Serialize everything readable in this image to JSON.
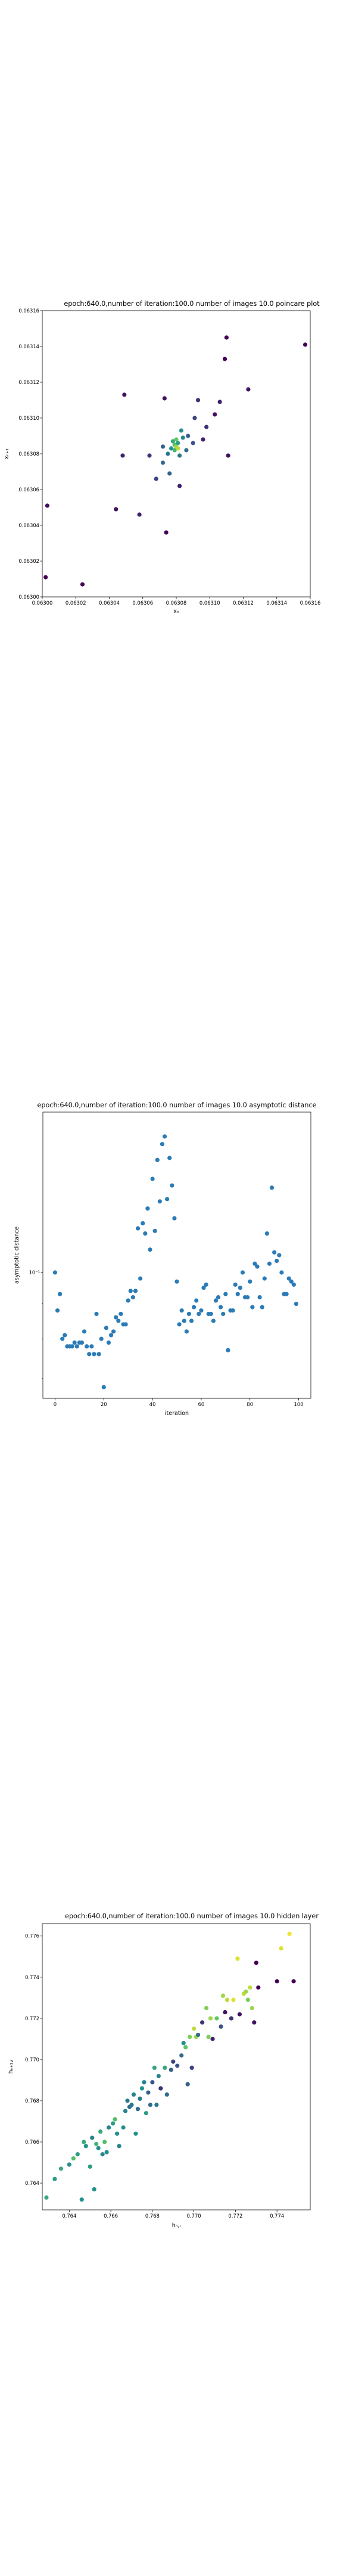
{
  "colors": {
    "background": "#ffffff",
    "axes": "#000000",
    "colormap": "viridis",
    "asym_point": "#2a7bb6"
  },
  "chart_data": [
    {
      "type": "scatter",
      "title": "epoch:640.0,number of iteration:100.0 number of images 10.0 poincare plot",
      "xlabel": "xₙ",
      "ylabel": "xₙ₊₁",
      "xlim": [
        0.063,
        0.06316
      ],
      "ylim": [
        0.063,
        0.06316
      ],
      "xticks": [
        "0.06300",
        "0.06302",
        "0.06304",
        "0.06306",
        "0.06308",
        "0.06310",
        "0.06312",
        "0.06314",
        "0.06316"
      ],
      "yticks": [
        "0.06300",
        "0.06302",
        "0.06304",
        "0.06306",
        "0.06308",
        "0.06310",
        "0.06312",
        "0.06314",
        "0.06316"
      ],
      "points": [
        {
          "x": 0.063002,
          "y": 0.063011,
          "c": 0.0
        },
        {
          "x": 0.063003,
          "y": 0.063051,
          "c": 0.05
        },
        {
          "x": 0.063024,
          "y": 0.063007,
          "c": 0.0
        },
        {
          "x": 0.063044,
          "y": 0.063049,
          "c": 0.05
        },
        {
          "x": 0.063048,
          "y": 0.063079,
          "c": 0.1
        },
        {
          "x": 0.063049,
          "y": 0.063113,
          "c": 0.05
        },
        {
          "x": 0.063058,
          "y": 0.063046,
          "c": 0.1
        },
        {
          "x": 0.063064,
          "y": 0.063079,
          "c": 0.15
        },
        {
          "x": 0.063068,
          "y": 0.063066,
          "c": 0.2
        },
        {
          "x": 0.063072,
          "y": 0.063084,
          "c": 0.3
        },
        {
          "x": 0.063072,
          "y": 0.063075,
          "c": 0.35
        },
        {
          "x": 0.063073,
          "y": 0.063111,
          "c": 0.05
        },
        {
          "x": 0.063074,
          "y": 0.063036,
          "c": 0.0
        },
        {
          "x": 0.063075,
          "y": 0.06308,
          "c": 0.4
        },
        {
          "x": 0.063076,
          "y": 0.063069,
          "c": 0.3
        },
        {
          "x": 0.063077,
          "y": 0.063083,
          "c": 0.5
        },
        {
          "x": 0.063078,
          "y": 0.063087,
          "c": 0.6
        },
        {
          "x": 0.063079,
          "y": 0.063082,
          "c": 0.65
        },
        {
          "x": 0.063079,
          "y": 0.063085,
          "c": 0.7
        },
        {
          "x": 0.06308,
          "y": 0.063084,
          "c": 0.85
        },
        {
          "x": 0.06308,
          "y": 0.063088,
          "c": 0.75
        },
        {
          "x": 0.063081,
          "y": 0.063083,
          "c": 0.9
        },
        {
          "x": 0.063081,
          "y": 0.063086,
          "c": 0.55
        },
        {
          "x": 0.063082,
          "y": 0.063062,
          "c": 0.1
        },
        {
          "x": 0.063082,
          "y": 0.063079,
          "c": 0.4
        },
        {
          "x": 0.063083,
          "y": 0.063093,
          "c": 0.5
        },
        {
          "x": 0.063084,
          "y": 0.063089,
          "c": 0.45
        },
        {
          "x": 0.063086,
          "y": 0.063082,
          "c": 0.35
        },
        {
          "x": 0.063087,
          "y": 0.06309,
          "c": 0.3
        },
        {
          "x": 0.06309,
          "y": 0.063086,
          "c": 0.25
        },
        {
          "x": 0.063091,
          "y": 0.0631,
          "c": 0.2
        },
        {
          "x": 0.063093,
          "y": 0.06311,
          "c": 0.15
        },
        {
          "x": 0.063096,
          "y": 0.063088,
          "c": 0.1
        },
        {
          "x": 0.063098,
          "y": 0.063095,
          "c": 0.15
        },
        {
          "x": 0.063103,
          "y": 0.063102,
          "c": 0.05
        },
        {
          "x": 0.063106,
          "y": 0.063109,
          "c": 0.1
        },
        {
          "x": 0.063109,
          "y": 0.063133,
          "c": 0.0
        },
        {
          "x": 0.06311,
          "y": 0.063145,
          "c": 0.0
        },
        {
          "x": 0.063111,
          "y": 0.063079,
          "c": 0.05
        },
        {
          "x": 0.063123,
          "y": 0.063116,
          "c": 0.05
        },
        {
          "x": 0.063157,
          "y": 0.063141,
          "c": 0.0
        }
      ]
    },
    {
      "type": "scatter",
      "title": "epoch:640.0,number of iteration:100.0  number of images 10.0 asymptotic distance",
      "xlabel": "iteration",
      "ylabel": "asymptotic distance",
      "xlim": [
        -5,
        105
      ],
      "xticks": [
        0,
        20,
        40,
        60,
        80,
        100
      ],
      "yscale": "log",
      "ylim": [
        0.0655,
        0.1715
      ],
      "yticks": [
        {
          "value": 0.1,
          "label": "10⁻¹"
        }
      ],
      "x": [
        0,
        1,
        2,
        3,
        4,
        5,
        6,
        7,
        8,
        9,
        10,
        11,
        12,
        13,
        14,
        15,
        16,
        17,
        18,
        19,
        20,
        21,
        22,
        23,
        24,
        25,
        26,
        27,
        28,
        29,
        30,
        31,
        32,
        33,
        34,
        35,
        36,
        37,
        38,
        39,
        40,
        41,
        42,
        43,
        44,
        45,
        46,
        47,
        48,
        49,
        50,
        51,
        52,
        53,
        54,
        55,
        56,
        57,
        58,
        59,
        60,
        61,
        62,
        63,
        64,
        65,
        66,
        67,
        68,
        69,
        70,
        71,
        72,
        73,
        74,
        75,
        76,
        77,
        78,
        79,
        80,
        81,
        82,
        83,
        84,
        85,
        86,
        87,
        88,
        89,
        90,
        91,
        92,
        93,
        94,
        95,
        96,
        97,
        98,
        99
      ],
      "y": [
        0.1,
        0.088,
        0.093,
        0.08,
        0.081,
        0.078,
        0.078,
        0.078,
        0.079,
        0.078,
        0.079,
        0.079,
        0.082,
        0.078,
        0.076,
        0.078,
        0.076,
        0.087,
        0.076,
        0.08,
        0.068,
        0.083,
        0.079,
        0.081,
        0.082,
        0.086,
        0.085,
        0.087,
        0.084,
        0.084,
        0.091,
        0.094,
        0.092,
        0.094,
        0.116,
        0.098,
        0.118,
        0.114,
        0.124,
        0.108,
        0.137,
        0.115,
        0.146,
        0.127,
        0.154,
        0.158,
        0.128,
        0.147,
        0.134,
        0.12,
        0.097,
        0.084,
        0.088,
        0.085,
        0.082,
        0.087,
        0.085,
        0.089,
        0.091,
        0.087,
        0.088,
        0.095,
        0.096,
        0.087,
        0.087,
        0.085,
        0.091,
        0.092,
        0.089,
        0.087,
        0.093,
        0.077,
        0.088,
        0.088,
        0.096,
        0.093,
        0.095,
        0.1,
        0.092,
        0.092,
        0.097,
        0.089,
        0.103,
        0.102,
        0.092,
        0.089,
        0.098,
        0.114,
        0.103,
        0.133,
        0.107,
        0.104,
        0.106,
        0.1,
        0.093,
        0.093,
        0.098,
        0.097,
        0.096,
        0.09
      ]
    },
    {
      "type": "scatter",
      "title": "epoch:640.0,number of iteration:100.0  number of images 10.0 hidden layer",
      "xlabel": "hₙ,ᵢ",
      "ylabel": "hₙ₊₁,ᵢ",
      "xlim": [
        0.7627,
        0.7756
      ],
      "ylim": [
        0.7627,
        0.7766
      ],
      "xticks": [
        "0.764",
        "0.766",
        "0.768",
        "0.770",
        "0.772",
        "0.774"
      ],
      "yticks": [
        "0.764",
        "0.766",
        "0.768",
        "0.770",
        "0.772",
        "0.774",
        "0.776"
      ],
      "points": [
        {
          "x": 0.7629,
          "y": 0.7633,
          "c": 0.6
        },
        {
          "x": 0.7633,
          "y": 0.7642,
          "c": 0.55
        },
        {
          "x": 0.7636,
          "y": 0.7647,
          "c": 0.6
        },
        {
          "x": 0.764,
          "y": 0.7649,
          "c": 0.5
        },
        {
          "x": 0.7642,
          "y": 0.7652,
          "c": 0.7
        },
        {
          "x": 0.7644,
          "y": 0.7654,
          "c": 0.55
        },
        {
          "x": 0.7646,
          "y": 0.7632,
          "c": 0.5
        },
        {
          "x": 0.7647,
          "y": 0.766,
          "c": 0.6
        },
        {
          "x": 0.7648,
          "y": 0.7658,
          "c": 0.5
        },
        {
          "x": 0.765,
          "y": 0.7648,
          "c": 0.55
        },
        {
          "x": 0.7651,
          "y": 0.7662,
          "c": 0.45
        },
        {
          "x": 0.7652,
          "y": 0.7637,
          "c": 0.5
        },
        {
          "x": 0.7653,
          "y": 0.7659,
          "c": 0.65
        },
        {
          "x": 0.7654,
          "y": 0.7657,
          "c": 0.5
        },
        {
          "x": 0.7655,
          "y": 0.7665,
          "c": 0.6
        },
        {
          "x": 0.7656,
          "y": 0.7654,
          "c": 0.45
        },
        {
          "x": 0.7657,
          "y": 0.766,
          "c": 0.7
        },
        {
          "x": 0.7658,
          "y": 0.7655,
          "c": 0.5
        },
        {
          "x": 0.7659,
          "y": 0.7667,
          "c": 0.45
        },
        {
          "x": 0.7661,
          "y": 0.7669,
          "c": 0.55
        },
        {
          "x": 0.7662,
          "y": 0.7671,
          "c": 0.7
        },
        {
          "x": 0.7663,
          "y": 0.7664,
          "c": 0.5
        },
        {
          "x": 0.7664,
          "y": 0.7658,
          "c": 0.45
        },
        {
          "x": 0.7666,
          "y": 0.7667,
          "c": 0.5
        },
        {
          "x": 0.7667,
          "y": 0.7675,
          "c": 0.45
        },
        {
          "x": 0.7668,
          "y": 0.768,
          "c": 0.4
        },
        {
          "x": 0.7669,
          "y": 0.7677,
          "c": 0.35
        },
        {
          "x": 0.767,
          "y": 0.7678,
          "c": 0.4
        },
        {
          "x": 0.7671,
          "y": 0.7683,
          "c": 0.45
        },
        {
          "x": 0.7672,
          "y": 0.7664,
          "c": 0.5
        },
        {
          "x": 0.7673,
          "y": 0.7676,
          "c": 0.35
        },
        {
          "x": 0.7674,
          "y": 0.7681,
          "c": 0.4
        },
        {
          "x": 0.7675,
          "y": 0.7686,
          "c": 0.5
        },
        {
          "x": 0.7676,
          "y": 0.7689,
          "c": 0.45
        },
        {
          "x": 0.7677,
          "y": 0.7674,
          "c": 0.55
        },
        {
          "x": 0.7678,
          "y": 0.7684,
          "c": 0.3
        },
        {
          "x": 0.7679,
          "y": 0.7678,
          "c": 0.35
        },
        {
          "x": 0.768,
          "y": 0.7689,
          "c": 0.25
        },
        {
          "x": 0.7681,
          "y": 0.7696,
          "c": 0.6
        },
        {
          "x": 0.7682,
          "y": 0.7678,
          "c": 0.4
        },
        {
          "x": 0.7683,
          "y": 0.7692,
          "c": 0.45
        },
        {
          "x": 0.7684,
          "y": 0.7686,
          "c": 0.15
        },
        {
          "x": 0.7686,
          "y": 0.7696,
          "c": 0.6
        },
        {
          "x": 0.7687,
          "y": 0.7683,
          "c": 0.35
        },
        {
          "x": 0.7689,
          "y": 0.7695,
          "c": 0.3
        },
        {
          "x": 0.769,
          "y": 0.7699,
          "c": 0.2
        },
        {
          "x": 0.7692,
          "y": 0.7697,
          "c": 0.25
        },
        {
          "x": 0.7694,
          "y": 0.7702,
          "c": 0.35
        },
        {
          "x": 0.7695,
          "y": 0.7708,
          "c": 0.5
        },
        {
          "x": 0.7696,
          "y": 0.7706,
          "c": 0.75
        },
        {
          "x": 0.7697,
          "y": 0.7688,
          "c": 0.3
        },
        {
          "x": 0.7698,
          "y": 0.7711,
          "c": 0.8
        },
        {
          "x": 0.7699,
          "y": 0.7696,
          "c": 0.2
        },
        {
          "x": 0.77,
          "y": 0.7715,
          "c": 0.9
        },
        {
          "x": 0.7701,
          "y": 0.7711,
          "c": 0.85
        },
        {
          "x": 0.7702,
          "y": 0.7712,
          "c": 0.35
        },
        {
          "x": 0.7704,
          "y": 0.7718,
          "c": 0.15
        },
        {
          "x": 0.7706,
          "y": 0.7725,
          "c": 0.8
        },
        {
          "x": 0.7707,
          "y": 0.7711,
          "c": 0.8
        },
        {
          "x": 0.7708,
          "y": 0.772,
          "c": 0.85
        },
        {
          "x": 0.7709,
          "y": 0.771,
          "c": 0.1
        },
        {
          "x": 0.7711,
          "y": 0.772,
          "c": 0.75
        },
        {
          "x": 0.7713,
          "y": 0.7716,
          "c": 0.25
        },
        {
          "x": 0.7714,
          "y": 0.7731,
          "c": 0.85
        },
        {
          "x": 0.7715,
          "y": 0.7723,
          "c": 0.05
        },
        {
          "x": 0.7716,
          "y": 0.7729,
          "c": 0.9
        },
        {
          "x": 0.7718,
          "y": 0.772,
          "c": 0.15
        },
        {
          "x": 0.7719,
          "y": 0.7729,
          "c": 0.95
        },
        {
          "x": 0.7721,
          "y": 0.7749,
          "c": 0.95
        },
        {
          "x": 0.7722,
          "y": 0.7722,
          "c": 0.05
        },
        {
          "x": 0.7724,
          "y": 0.7732,
          "c": 0.9
        },
        {
          "x": 0.7725,
          "y": 0.7733,
          "c": 0.85
        },
        {
          "x": 0.7726,
          "y": 0.7729,
          "c": 0.8
        },
        {
          "x": 0.7727,
          "y": 0.7735,
          "c": 0.9
        },
        {
          "x": 0.7728,
          "y": 0.7725,
          "c": 0.85
        },
        {
          "x": 0.7729,
          "y": 0.7718,
          "c": 0.05
        },
        {
          "x": 0.773,
          "y": 0.7747,
          "c": 0.0
        },
        {
          "x": 0.7731,
          "y": 0.7735,
          "c": 0.0
        },
        {
          "x": 0.774,
          "y": 0.7738,
          "c": 0.0
        },
        {
          "x": 0.7742,
          "y": 0.7754,
          "c": 0.95
        },
        {
          "x": 0.7746,
          "y": 0.7761,
          "c": 0.98
        },
        {
          "x": 0.7748,
          "y": 0.7738,
          "c": 0.0
        }
      ]
    }
  ]
}
